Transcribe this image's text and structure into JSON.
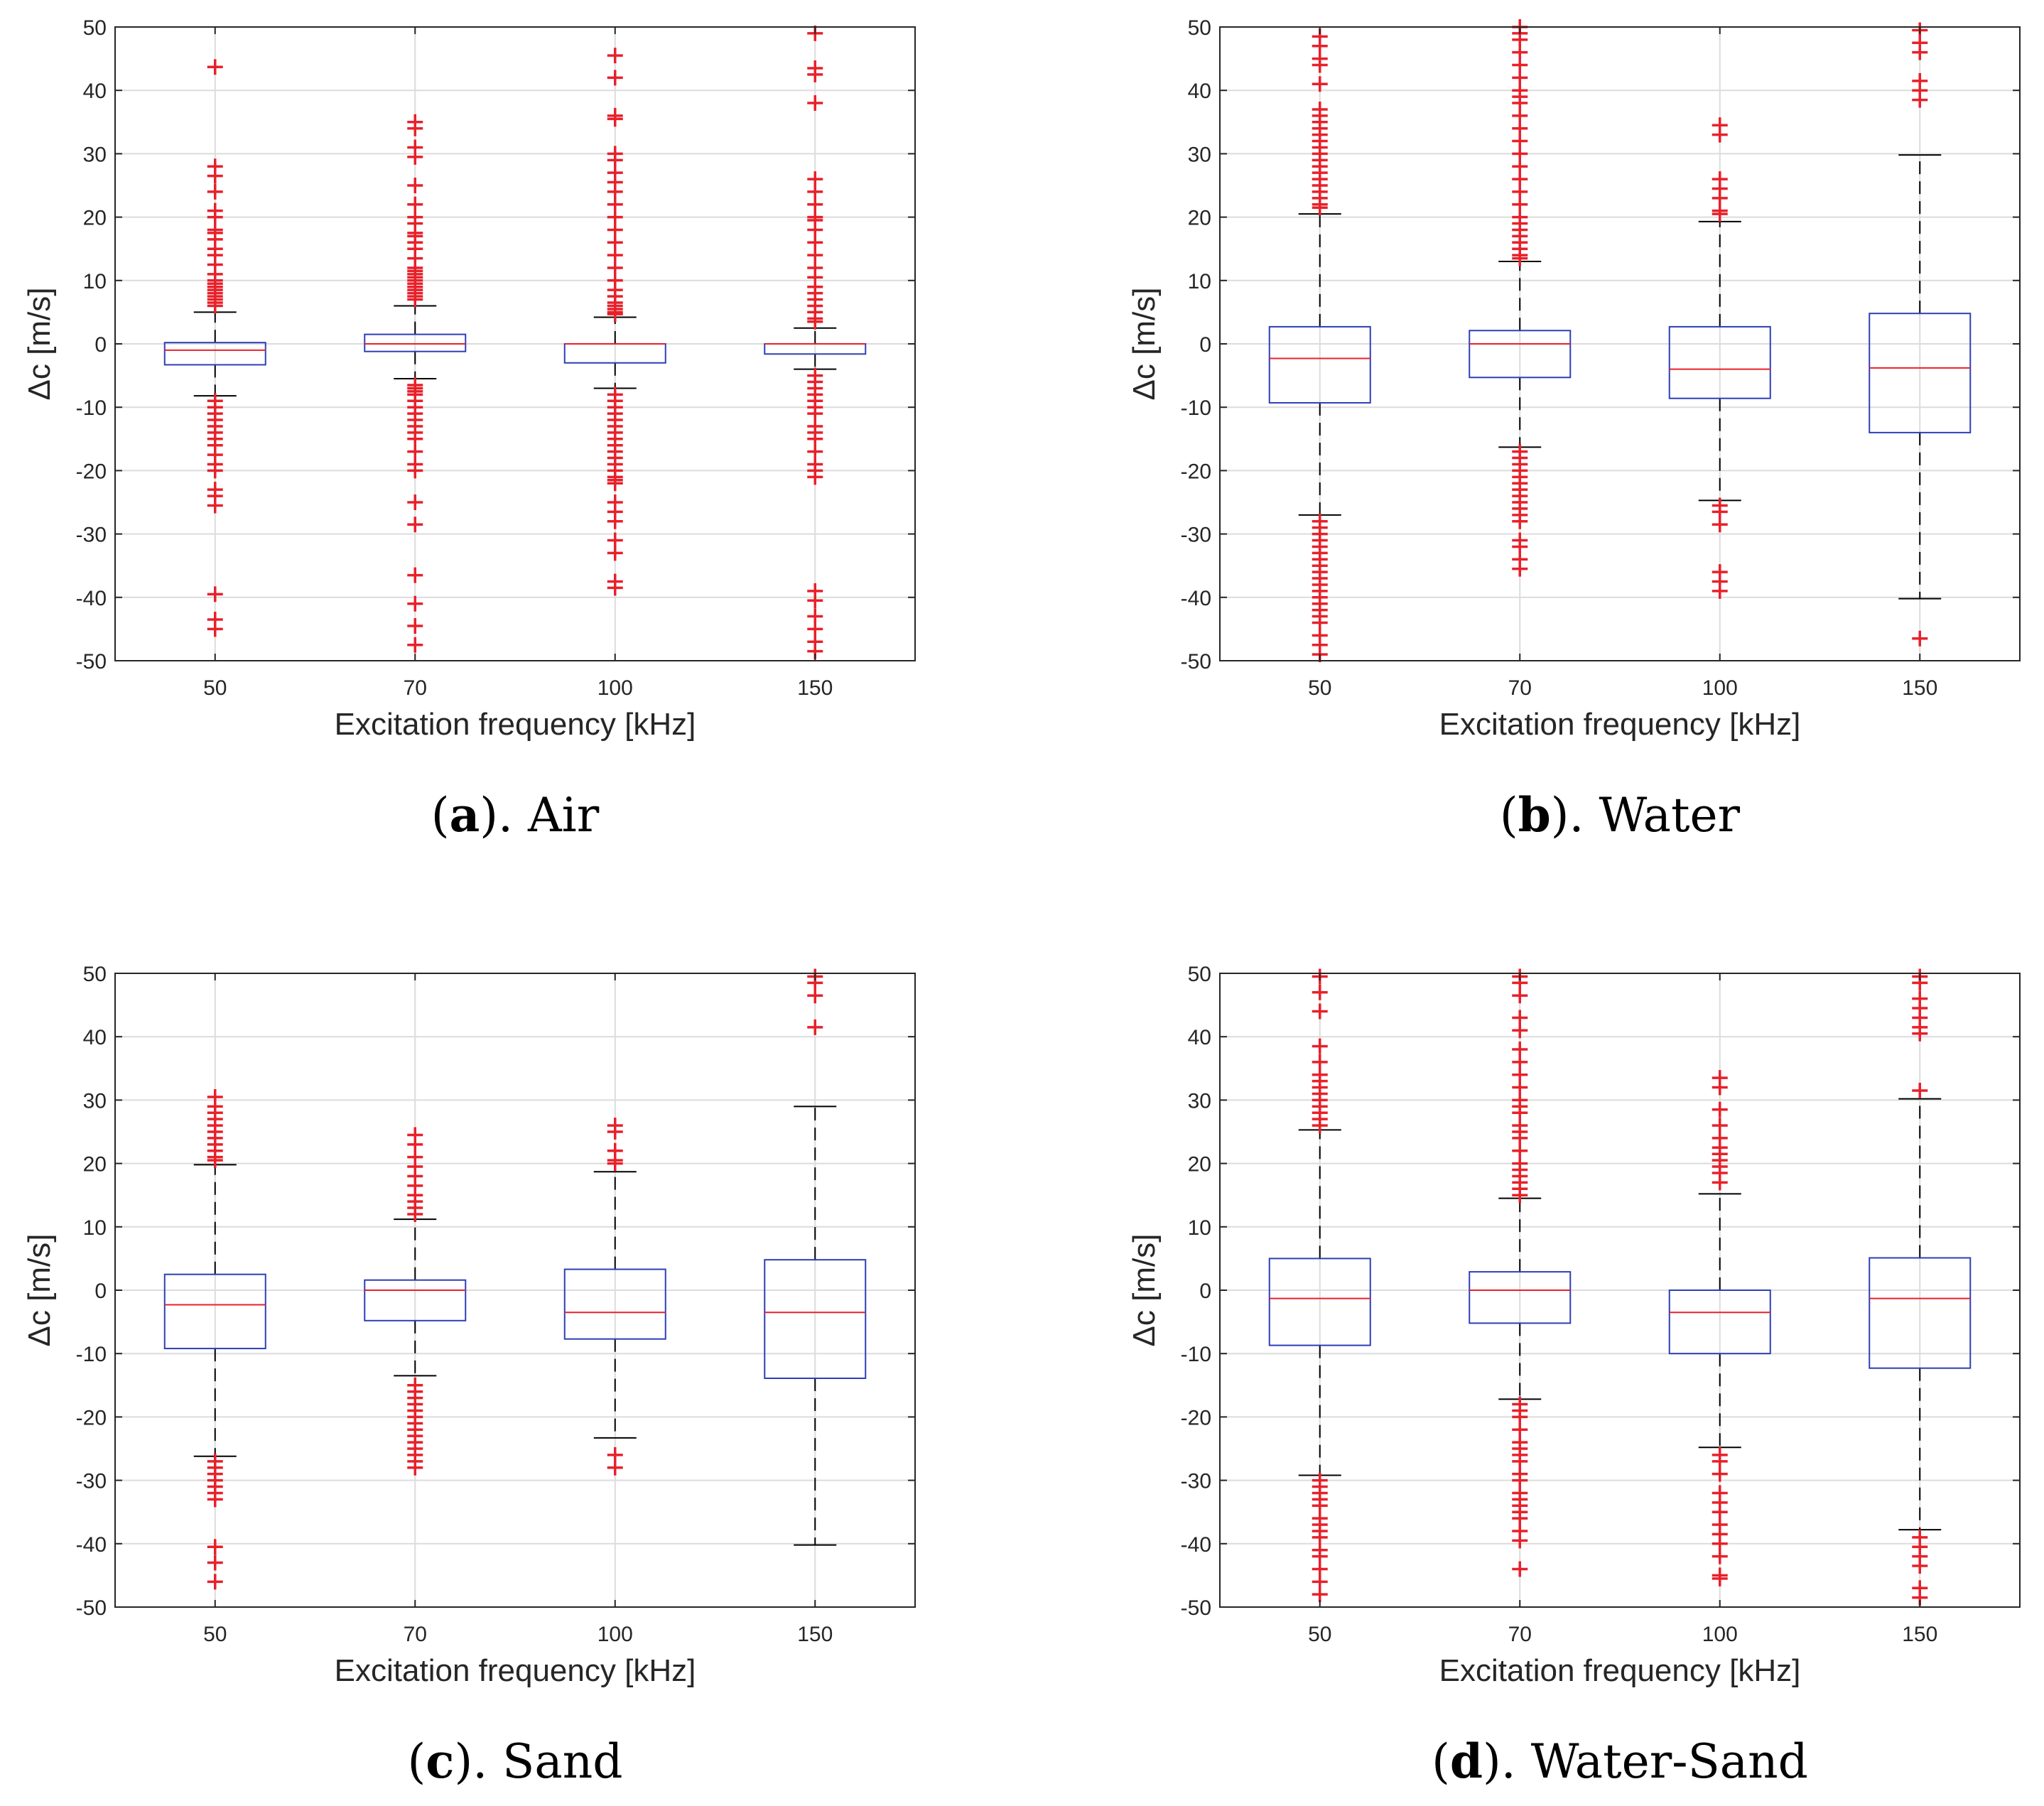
{
  "colors": {
    "box": "#2d3fb5",
    "median": "#e8202a",
    "outlier": "#e8202a",
    "whisker": "#000000",
    "grid": "#dcdcdc",
    "axis": "#262626"
  },
  "chart_data": [
    {
      "type": "boxplot",
      "caption_letter": "a",
      "caption_text": ". Air",
      "xlabel": "Excitation frequency [kHz]",
      "ylabel": "Δc [m/s]",
      "ylim": [
        -50,
        50
      ],
      "yticks": [
        -50,
        -40,
        -30,
        -20,
        -10,
        0,
        10,
        20,
        30,
        40,
        50
      ],
      "grid": true,
      "categories": [
        "50",
        "70",
        "100",
        "150"
      ],
      "boxes": [
        {
          "q1": -3.3,
          "median": -1.0,
          "q3": 0.2,
          "whisker_low": -8.2,
          "whisker_high": 5.0,
          "outliers": [
            43.7,
            28.0,
            26.5,
            24.0,
            21.0,
            20.0,
            18.0,
            17.5,
            16.5,
            15.0,
            14.0,
            12.5,
            11.0,
            10.0,
            9.5,
            9.0,
            8.5,
            8.0,
            7.5,
            7.0,
            6.5,
            6.0,
            -9.0,
            -10.0,
            -11.0,
            -12.0,
            -13.0,
            -14.0,
            -15.0,
            -16.0,
            -17.5,
            -19.0,
            -20.0,
            -23.0,
            -24.0,
            -25.5,
            -39.5,
            -43.5,
            -45.0
          ]
        },
        {
          "q1": -1.2,
          "median": 0.0,
          "q3": 1.5,
          "whisker_low": -5.5,
          "whisker_high": 6.0,
          "outliers": [
            35.0,
            34.0,
            31.0,
            29.5,
            25.0,
            22.0,
            20.0,
            19.0,
            17.5,
            17.0,
            16.0,
            15.0,
            13.5,
            12.0,
            11.5,
            11.0,
            10.5,
            10.0,
            9.5,
            9.0,
            8.5,
            8.0,
            7.5,
            7.0,
            -6.5,
            -7.0,
            -7.5,
            -8.0,
            -9.0,
            -10.0,
            -11.0,
            -12.0,
            -13.0,
            -14.0,
            -15.0,
            -17.0,
            -19.0,
            -20.0,
            -25.0,
            -28.5,
            -36.5,
            -41.0,
            -44.5,
            -47.5
          ]
        },
        {
          "q1": -3.0,
          "median": 0.0,
          "q3": 0.0,
          "whisker_low": -7.0,
          "whisker_high": 4.2,
          "outliers": [
            45.5,
            42.0,
            36.0,
            35.5,
            30.0,
            29.0,
            27.0,
            25.5,
            24.0,
            22.0,
            20.0,
            18.0,
            16.0,
            14.0,
            12.0,
            10.0,
            8.5,
            7.5,
            6.5,
            6.0,
            5.5,
            5.0,
            4.7,
            -8.0,
            -9.0,
            -10.0,
            -11.0,
            -12.0,
            -13.0,
            -14.0,
            -15.0,
            -16.0,
            -17.0,
            -18.0,
            -19.0,
            -20.0,
            -21.0,
            -21.5,
            -22.0,
            -25.0,
            -26.5,
            -28.0,
            -31.0,
            -33.0,
            -37.5,
            -38.5
          ]
        },
        {
          "q1": -1.6,
          "median": 0.0,
          "q3": 0.0,
          "whisker_low": -4.0,
          "whisker_high": 2.5,
          "outliers": [
            49.0,
            43.5,
            42.5,
            38.0,
            26.0,
            24.0,
            22.0,
            20.0,
            19.5,
            18.0,
            16.0,
            14.0,
            12.0,
            10.5,
            9.0,
            8.0,
            7.0,
            6.0,
            5.0,
            4.0,
            3.5,
            -5.0,
            -6.0,
            -7.0,
            -8.0,
            -9.0,
            -10.0,
            -11.0,
            -13.0,
            -14.0,
            -15.0,
            -17.0,
            -19.0,
            -20.0,
            -21.0,
            -39.0,
            -40.5,
            -43.0,
            -45.0,
            -47.0,
            -48.5
          ]
        }
      ]
    },
    {
      "type": "boxplot",
      "caption_letter": "b",
      "caption_text": ". Water",
      "xlabel": "Excitation frequency [kHz]",
      "ylabel": "Δc [m/s]",
      "ylim": [
        -50,
        50
      ],
      "yticks": [
        -50,
        -40,
        -30,
        -20,
        -10,
        0,
        10,
        20,
        30,
        40,
        50
      ],
      "grid": true,
      "categories": [
        "50",
        "70",
        "100",
        "150"
      ],
      "boxes": [
        {
          "q1": -9.3,
          "median": -2.3,
          "q3": 2.7,
          "whisker_low": -27.0,
          "whisker_high": 20.5,
          "outliers": [
            48.5,
            47.0,
            45.0,
            44.0,
            41.0,
            37.0,
            36.0,
            35.0,
            34.0,
            33.0,
            32.0,
            31.0,
            30.0,
            29.0,
            28.0,
            27.0,
            26.0,
            25.0,
            24.0,
            23.0,
            22.0,
            21.5,
            -28.0,
            -29.0,
            -30.0,
            -31.0,
            -32.0,
            -33.0,
            -34.0,
            -35.0,
            -36.0,
            -37.0,
            -38.0,
            -39.0,
            -40.0,
            -41.0,
            -42.0,
            -43.0,
            -44.0,
            -46.0,
            -47.5,
            -49.0
          ]
        },
        {
          "q1": -5.3,
          "median": 0.0,
          "q3": 2.1,
          "whisker_low": -16.3,
          "whisker_high": 13.0,
          "outliers": [
            50.0,
            49.0,
            48.0,
            46.0,
            44.0,
            42.0,
            40.0,
            39.0,
            38.0,
            36.0,
            34.0,
            32.0,
            30.0,
            28.0,
            26.0,
            24.0,
            22.0,
            20.0,
            19.0,
            18.0,
            17.0,
            16.0,
            15.0,
            14.0,
            13.5,
            -17.0,
            -18.0,
            -19.0,
            -20.0,
            -21.0,
            -22.0,
            -23.0,
            -24.0,
            -25.0,
            -26.0,
            -27.0,
            -28.0,
            -31.0,
            -32.0,
            -34.0,
            -35.5
          ]
        },
        {
          "q1": -8.6,
          "median": -4.0,
          "q3": 2.7,
          "whisker_low": -24.7,
          "whisker_high": 19.3,
          "outliers": [
            34.5,
            33.0,
            26.0,
            24.5,
            23.0,
            21.0,
            20.5,
            -25.5,
            -26.5,
            -28.5,
            -36.0,
            -37.5,
            -39.0
          ]
        },
        {
          "q1": -14.0,
          "median": -3.8,
          "q3": 4.8,
          "whisker_low": -40.2,
          "whisker_high": 29.8,
          "outliers": [
            49.5,
            47.5,
            46.0,
            41.5,
            40.0,
            38.5,
            -46.5
          ]
        }
      ]
    },
    {
      "type": "boxplot",
      "caption_letter": "c",
      "caption_text": ". Sand",
      "xlabel": "Excitation frequency [kHz]",
      "ylabel": "Δc [m/s]",
      "ylim": [
        -50,
        50
      ],
      "yticks": [
        -50,
        -40,
        -30,
        -20,
        -10,
        0,
        10,
        20,
        30,
        40,
        50
      ],
      "grid": true,
      "categories": [
        "50",
        "70",
        "100",
        "150"
      ],
      "boxes": [
        {
          "q1": -9.2,
          "median": -2.3,
          "q3": 2.5,
          "whisker_low": -26.2,
          "whisker_high": 19.8,
          "outliers": [
            30.5,
            29.0,
            28.0,
            27.0,
            26.0,
            25.0,
            24.0,
            23.0,
            22.0,
            21.0,
            20.5,
            -27.0,
            -28.0,
            -29.0,
            -30.0,
            -31.0,
            -32.0,
            -33.0,
            -40.5,
            -43.0,
            -46.0
          ]
        },
        {
          "q1": -4.8,
          "median": 0.0,
          "q3": 1.6,
          "whisker_low": -13.5,
          "whisker_high": 11.2,
          "outliers": [
            24.5,
            23.0,
            21.0,
            19.5,
            18.0,
            16.5,
            15.0,
            14.0,
            13.0,
            12.0,
            -15.0,
            -16.0,
            -17.0,
            -18.0,
            -19.0,
            -20.0,
            -21.0,
            -22.0,
            -23.0,
            -24.0,
            -25.0,
            -26.0,
            -27.0,
            -28.0
          ]
        },
        {
          "q1": -7.7,
          "median": -3.5,
          "q3": 3.3,
          "whisker_low": -23.3,
          "whisker_high": 18.7,
          "outliers": [
            26.0,
            25.0,
            22.0,
            20.5,
            20.0,
            -26.0,
            -28.0
          ]
        },
        {
          "q1": -13.9,
          "median": -3.5,
          "q3": 4.8,
          "whisker_low": -40.2,
          "whisker_high": 29.0,
          "outliers": [
            49.5,
            48.5,
            46.5,
            41.5
          ]
        }
      ]
    },
    {
      "type": "boxplot",
      "caption_letter": "d",
      "caption_text": ". Water-Sand",
      "xlabel": "Excitation frequency [kHz]",
      "ylabel": "Δc [m/s]",
      "ylim": [
        -50,
        50
      ],
      "yticks": [
        -50,
        -40,
        -30,
        -20,
        -10,
        0,
        10,
        20,
        30,
        40,
        50
      ],
      "grid": true,
      "categories": [
        "50",
        "70",
        "100",
        "150"
      ],
      "boxes": [
        {
          "q1": -8.7,
          "median": -1.3,
          "q3": 5.0,
          "whisker_low": -29.2,
          "whisker_high": 25.3,
          "outliers": [
            49.5,
            47.0,
            44.0,
            38.5,
            36.0,
            34.0,
            33.0,
            32.0,
            31.0,
            30.0,
            29.0,
            28.0,
            27.0,
            26.0,
            -30.0,
            -31.0,
            -32.0,
            -33.0,
            -34.0,
            -36.0,
            -37.0,
            -38.0,
            -39.0,
            -41.0,
            -42.0,
            -44.0,
            -46.0,
            -48.0
          ]
        },
        {
          "q1": -5.2,
          "median": 0.0,
          "q3": 2.9,
          "whisker_low": -17.2,
          "whisker_high": 14.5,
          "outliers": [
            49.5,
            48.5,
            46.5,
            43.0,
            41.0,
            38.0,
            36.0,
            34.0,
            32.0,
            30.0,
            29.0,
            28.0,
            26.0,
            25.0,
            24.0,
            22.0,
            20.0,
            19.0,
            18.0,
            17.0,
            16.0,
            15.0,
            -18.0,
            -19.0,
            -20.0,
            -22.0,
            -24.0,
            -25.0,
            -26.0,
            -27.0,
            -29.0,
            -30.0,
            -32.0,
            -33.0,
            -34.0,
            -35.0,
            -36.0,
            -38.0,
            -39.5,
            -44.0
          ]
        },
        {
          "q1": -10.0,
          "median": -3.5,
          "q3": 0.0,
          "whisker_low": -24.8,
          "whisker_high": 15.2,
          "outliers": [
            33.5,
            32.0,
            28.5,
            26.0,
            24.0,
            22.5,
            21.5,
            20.5,
            19.5,
            18.5,
            17.0,
            -26.0,
            -27.0,
            -29.0,
            -32.0,
            -33.5,
            -35.0,
            -37.0,
            -38.5,
            -40.0,
            -42.0,
            -45.0,
            -45.5
          ]
        },
        {
          "q1": -12.3,
          "median": -1.3,
          "q3": 5.1,
          "whisker_low": -37.8,
          "whisker_high": 30.2,
          "outliers": [
            49.5,
            48.5,
            46.0,
            44.5,
            43.0,
            41.5,
            40.5,
            31.5,
            -39.0,
            -40.5,
            -42.0,
            -43.5,
            -47.0,
            -48.5
          ]
        }
      ]
    }
  ]
}
